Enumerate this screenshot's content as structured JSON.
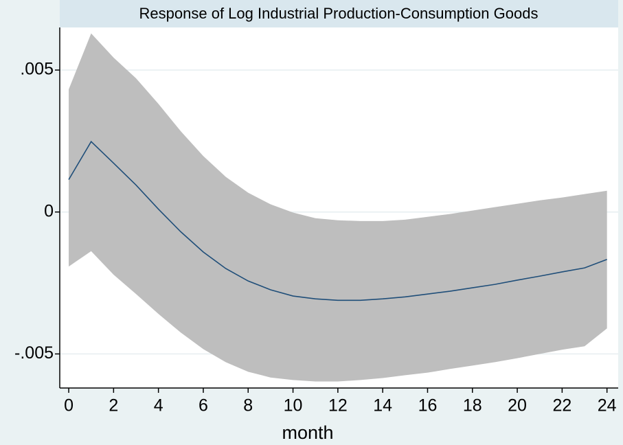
{
  "chart_data": {
    "type": "line",
    "title": "Response of Log Industrial Production-Consumption Goods",
    "x_label": "month",
    "x": [
      0,
      1,
      2,
      3,
      4,
      5,
      6,
      7,
      8,
      9,
      10,
      11,
      12,
      13,
      14,
      15,
      16,
      17,
      18,
      19,
      20,
      21,
      22,
      23,
      24
    ],
    "series": [
      {
        "color": "#1f4e79",
        "values": [
          0.00114,
          0.00248,
          0.00172,
          0.00095,
          0.0001,
          -0.0007,
          -0.00141,
          -0.00199,
          -0.00243,
          -0.00274,
          -0.00296,
          -0.00306,
          -0.00311,
          -0.00311,
          -0.00306,
          -0.00299,
          -0.00289,
          -0.00279,
          -0.00267,
          -0.00255,
          -0.0024,
          -0.00226,
          -0.00211,
          -0.00197,
          -0.00167
        ]
      }
    ],
    "band": {
      "color": "#bebebe",
      "upper": [
        0.00432,
        0.00629,
        0.00544,
        0.00471,
        0.00381,
        0.00284,
        0.00197,
        0.00124,
        0.00068,
        0.00027,
        -2e-05,
        -0.00022,
        -0.00029,
        -0.00032,
        -0.00032,
        -0.00027,
        -0.00017,
        -7e-05,
        5e-05,
        0.00017,
        0.00029,
        0.00041,
        0.00051,
        0.00063,
        0.00075
      ],
      "lower": [
        -0.00192,
        -0.00138,
        -0.00221,
        -0.00289,
        -0.00359,
        -0.00425,
        -0.00483,
        -0.00529,
        -0.00563,
        -0.00583,
        -0.00592,
        -0.00597,
        -0.00597,
        -0.00592,
        -0.00585,
        -0.00575,
        -0.00566,
        -0.00553,
        -0.00541,
        -0.00529,
        -0.00515,
        -0.005,
        -0.00485,
        -0.00473,
        -0.0041
      ]
    },
    "xlim": [
      -0.4,
      24.5
    ],
    "ylim": [
      -0.0062,
      0.0065
    ],
    "xticks": [
      0,
      2,
      4,
      6,
      8,
      10,
      12,
      14,
      16,
      18,
      20,
      22,
      24
    ],
    "yticks": [
      {
        "value": -0.005,
        "label": "-.005"
      },
      0,
      {
        "value": 0.005,
        "label": ".005"
      }
    ],
    "grid": true
  }
}
